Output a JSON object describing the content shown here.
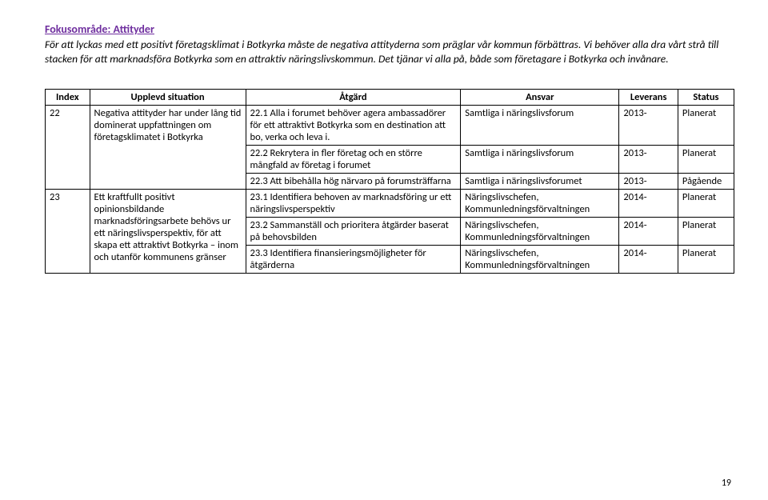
{
  "page": {
    "focus_title": "Fokusområde: Attityder",
    "intro": "För att lyckas med ett positivt företagsklimat i Botkyrka måste de negativa attityderna som präglar vår kommun förbättras. Vi behöver alla dra vårt strå till stacken för att marknadsföra Botkyrka som en attraktiv näringslivskommun. Det tjänar vi alla på, både som företagare i Botkyrka och invånare.",
    "page_number": "19"
  },
  "table": {
    "headers": {
      "index": "Index",
      "situation": "Upplevd situation",
      "atgard": "Åtgärd",
      "ansvar": "Ansvar",
      "leverans": "Leverans",
      "status": "Status"
    },
    "rows": [
      {
        "index": "22",
        "index_rowspan": 3,
        "situation": "Negativa attityder har under lång tid dominerat uppfattningen om företagsklimatet i Botkyrka",
        "situation_rowspan": 3,
        "atgard": "22.1 Alla i forumet behöver agera ambassadörer för ett attraktivt Botkyrka som en destination att bo, verka och leva i.",
        "ansvar": "Samtliga i näringslivsforum",
        "leverans": "2013-",
        "status": "Planerat"
      },
      {
        "atgard": "22.2 Rekrytera in fler företag och en större mångfald av företag i forumet",
        "ansvar": "Samtliga i näringslivsforum",
        "leverans": "2013-",
        "status": "Planerat"
      },
      {
        "atgard": "22.3 Att bibehålla hög närvaro på forumsträffarna",
        "ansvar": "Samtliga i näringslivsforumet",
        "leverans": "2013-",
        "status": "Pågående"
      },
      {
        "index": "23",
        "index_rowspan": 3,
        "situation": "Ett kraftfullt positivt opinionsbildande marknadsföringsarbete behövs ur ett näringslivsperspektiv, för att skapa ett attraktivt Botkyrka – inom och utanför kommunens gränser",
        "situation_rowspan": 3,
        "atgard": "23.1 Identifiera behoven av marknadsföring ur ett näringslivsperspektiv",
        "ansvar": "Näringslivschefen, Kommunledningsförvaltningen",
        "leverans": "2014-",
        "status": "Planerat"
      },
      {
        "atgard": "23.2 Sammanställ och prioritera åtgärder baserat på behovsbilden",
        "ansvar": "Näringslivschefen, Kommunledningsförvaltningen",
        "leverans": "2014-",
        "status": "Planerat"
      },
      {
        "atgard": "23.3 Identifiera finansieringsmöjligheter för åtgärderna",
        "ansvar": "Näringslivschefen, Kommunledningsförvaltningen",
        "leverans": "2014-",
        "status": "Planerat"
      }
    ]
  }
}
